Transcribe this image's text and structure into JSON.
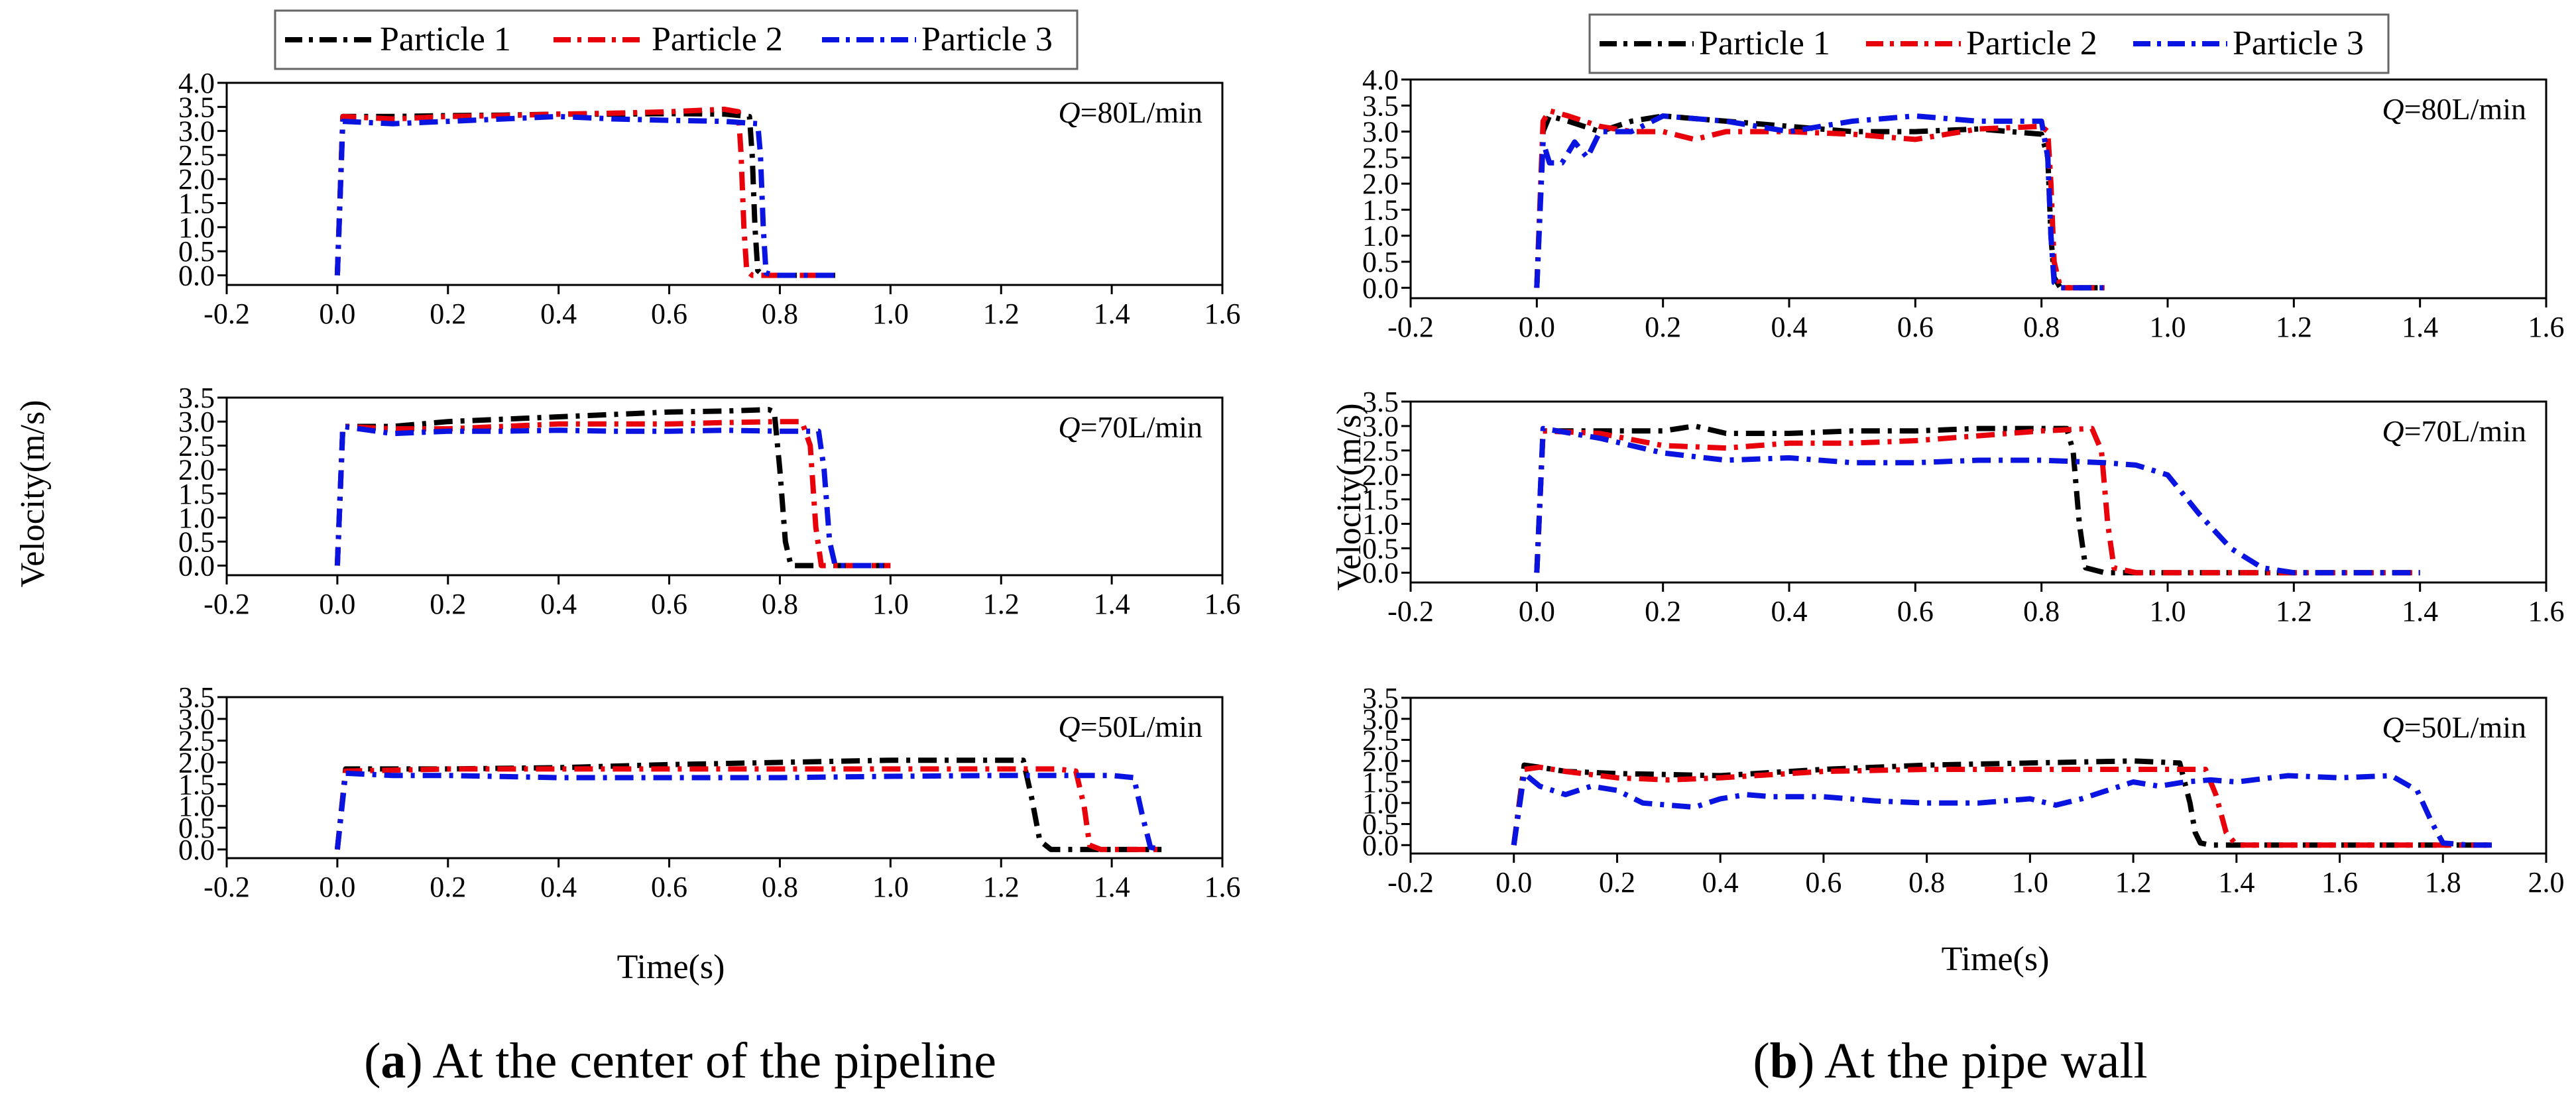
{
  "panels": [
    {
      "caption_letter": "a",
      "caption_text": " At the center of the pipeline",
      "ylabel": "Velocity(m/s)",
      "xlabel": "Time(s)"
    },
    {
      "caption_letter": "b",
      "caption_text": " At the pipe wall",
      "ylabel": "Velocity(m/s)",
      "xlabel": "Time(s)"
    }
  ],
  "legend": [
    "Particle 1",
    "Particle 2",
    "Particle 3"
  ],
  "series_colors": [
    "#000000",
    "#e8000b",
    "#0a14e0"
  ],
  "chart_data": [
    {
      "type": "line",
      "panel": "a",
      "subplot": 1,
      "annotation": "Q=80L/min",
      "xlim": [
        -0.2,
        1.6
      ],
      "ylim": [
        -0.2,
        4.0
      ],
      "xticks": [
        -0.2,
        0.0,
        0.2,
        0.4,
        0.6,
        0.8,
        1.0,
        1.2,
        1.4,
        1.6
      ],
      "yticks": [
        0.0,
        0.5,
        1.0,
        1.5,
        2.0,
        2.5,
        3.0,
        3.5,
        4.0
      ],
      "grid": false,
      "series": [
        {
          "name": "Particle 1",
          "x": [
            0.0,
            0.01,
            0.1,
            0.2,
            0.3,
            0.4,
            0.5,
            0.6,
            0.7,
            0.745,
            0.75,
            0.755,
            0.76,
            0.77,
            0.79,
            0.9
          ],
          "y": [
            0.0,
            3.3,
            3.3,
            3.32,
            3.33,
            3.35,
            3.35,
            3.36,
            3.35,
            3.3,
            2.5,
            1.0,
            0.1,
            0.0,
            0.0,
            0.0
          ]
        },
        {
          "name": "Particle 2",
          "x": [
            0.0,
            0.01,
            0.1,
            0.2,
            0.3,
            0.4,
            0.5,
            0.6,
            0.7,
            0.725,
            0.73,
            0.735,
            0.74,
            0.75,
            0.8,
            0.9
          ],
          "y": [
            0.0,
            3.3,
            3.25,
            3.3,
            3.32,
            3.35,
            3.37,
            3.4,
            3.45,
            3.4,
            2.5,
            1.0,
            0.1,
            0.0,
            0.0,
            0.0
          ]
        },
        {
          "name": "Particle 3",
          "x": [
            0.0,
            0.01,
            0.1,
            0.2,
            0.3,
            0.4,
            0.5,
            0.6,
            0.7,
            0.76,
            0.765,
            0.77,
            0.775,
            0.79,
            0.9
          ],
          "y": [
            0.0,
            3.2,
            3.15,
            3.2,
            3.25,
            3.3,
            3.25,
            3.22,
            3.2,
            3.15,
            2.5,
            1.0,
            0.05,
            0.0,
            0.0
          ]
        }
      ]
    },
    {
      "type": "line",
      "panel": "a",
      "subplot": 2,
      "annotation": "Q=70L/min",
      "xlim": [
        -0.2,
        1.6
      ],
      "ylim": [
        -0.2,
        3.5
      ],
      "xticks": [
        -0.2,
        0.0,
        0.2,
        0.4,
        0.6,
        0.8,
        1.0,
        1.2,
        1.4,
        1.6
      ],
      "yticks": [
        0.0,
        0.5,
        1.0,
        1.5,
        2.0,
        2.5,
        3.0,
        3.5
      ],
      "grid": false,
      "series": [
        {
          "name": "Particle 1",
          "x": [
            0.0,
            0.01,
            0.1,
            0.2,
            0.3,
            0.4,
            0.5,
            0.6,
            0.7,
            0.78,
            0.79,
            0.8,
            0.81,
            0.82,
            0.9,
            1.0
          ],
          "y": [
            0.0,
            2.9,
            2.9,
            3.0,
            3.05,
            3.1,
            3.15,
            3.2,
            3.22,
            3.25,
            3.2,
            2.0,
            0.5,
            0.0,
            0.0,
            0.0
          ]
        },
        {
          "name": "Particle 2",
          "x": [
            0.0,
            0.01,
            0.1,
            0.2,
            0.3,
            0.4,
            0.5,
            0.6,
            0.7,
            0.8,
            0.84,
            0.855,
            0.865,
            0.875,
            0.9,
            1.0
          ],
          "y": [
            0.0,
            2.9,
            2.85,
            2.85,
            2.9,
            2.95,
            2.95,
            2.95,
            2.98,
            3.0,
            3.0,
            2.5,
            0.8,
            0.0,
            0.0,
            0.0
          ]
        },
        {
          "name": "Particle 3",
          "x": [
            0.0,
            0.01,
            0.1,
            0.2,
            0.3,
            0.4,
            0.5,
            0.6,
            0.7,
            0.8,
            0.87,
            0.88,
            0.89,
            0.9,
            1.0
          ],
          "y": [
            0.0,
            2.9,
            2.75,
            2.8,
            2.8,
            2.82,
            2.8,
            2.8,
            2.82,
            2.8,
            2.8,
            2.0,
            0.5,
            0.0,
            0.0
          ]
        }
      ]
    },
    {
      "type": "line",
      "panel": "a",
      "subplot": 3,
      "annotation": "Q=50L/min",
      "xlim": [
        -0.2,
        1.6
      ],
      "ylim": [
        -0.2,
        3.5
      ],
      "xticks": [
        -0.2,
        0.0,
        0.2,
        0.4,
        0.6,
        0.8,
        1.0,
        1.2,
        1.4,
        1.6
      ],
      "yticks": [
        0.0,
        0.5,
        1.0,
        1.5,
        2.0,
        2.5,
        3.0,
        3.5
      ],
      "grid": false,
      "series": [
        {
          "name": "Particle 1",
          "x": [
            0.0,
            0.015,
            0.1,
            0.2,
            0.4,
            0.6,
            0.8,
            1.0,
            1.2,
            1.24,
            1.255,
            1.27,
            1.29,
            1.4,
            1.49
          ],
          "y": [
            0.0,
            1.85,
            1.85,
            1.85,
            1.88,
            1.95,
            2.0,
            2.05,
            2.05,
            2.05,
            1.2,
            0.2,
            0.0,
            0.0,
            0.0
          ]
        },
        {
          "name": "Particle 2",
          "x": [
            0.0,
            0.015,
            0.1,
            0.2,
            0.4,
            0.6,
            0.8,
            1.0,
            1.2,
            1.3,
            1.335,
            1.35,
            1.36,
            1.38,
            1.49
          ],
          "y": [
            0.0,
            1.8,
            1.82,
            1.85,
            1.85,
            1.85,
            1.85,
            1.85,
            1.85,
            1.85,
            1.8,
            1.0,
            0.1,
            0.0,
            0.0
          ]
        },
        {
          "name": "Particle 3",
          "x": [
            0.0,
            0.015,
            0.1,
            0.2,
            0.4,
            0.6,
            0.8,
            1.0,
            1.2,
            1.4,
            1.44,
            1.455,
            1.47,
            1.49
          ],
          "y": [
            0.0,
            1.75,
            1.7,
            1.7,
            1.65,
            1.65,
            1.65,
            1.68,
            1.7,
            1.7,
            1.65,
            0.8,
            0.05,
            0.0
          ]
        }
      ]
    },
    {
      "type": "line",
      "panel": "b",
      "subplot": 1,
      "annotation": "Q=80L/min",
      "xlim": [
        -0.2,
        1.6
      ],
      "ylim": [
        -0.2,
        4.0
      ],
      "xticks": [
        -0.2,
        0.0,
        0.2,
        0.4,
        0.6,
        0.8,
        1.0,
        1.2,
        1.4,
        1.6
      ],
      "yticks": [
        0.0,
        0.5,
        1.0,
        1.5,
        2.0,
        2.5,
        3.0,
        3.5,
        4.0
      ],
      "grid": false,
      "series": [
        {
          "name": "Particle 1",
          "x": [
            0.0,
            0.01,
            0.02,
            0.05,
            0.1,
            0.15,
            0.2,
            0.3,
            0.4,
            0.5,
            0.6,
            0.7,
            0.8,
            0.81,
            0.815,
            0.82,
            0.83,
            0.85,
            0.9
          ],
          "y": [
            0.0,
            3.0,
            3.3,
            3.2,
            3.0,
            3.2,
            3.3,
            3.2,
            3.1,
            3.0,
            3.0,
            3.05,
            2.95,
            2.5,
            1.0,
            0.2,
            0.0,
            0.0,
            0.0
          ]
        },
        {
          "name": "Particle 2",
          "x": [
            0.0,
            0.01,
            0.02,
            0.05,
            0.1,
            0.15,
            0.2,
            0.25,
            0.3,
            0.4,
            0.5,
            0.6,
            0.7,
            0.8,
            0.81,
            0.815,
            0.82,
            0.83,
            0.85,
            0.9
          ],
          "y": [
            0.0,
            3.2,
            3.4,
            3.3,
            3.1,
            3.0,
            3.0,
            2.85,
            3.0,
            3.0,
            2.95,
            2.85,
            3.05,
            3.1,
            3.0,
            2.0,
            0.5,
            0.0,
            0.0,
            0.0
          ]
        },
        {
          "name": "Particle 3",
          "x": [
            0.0,
            0.01,
            0.02,
            0.04,
            0.06,
            0.08,
            0.1,
            0.15,
            0.2,
            0.3,
            0.4,
            0.5,
            0.6,
            0.7,
            0.8,
            0.81,
            0.815,
            0.82,
            0.83,
            0.85,
            0.9
          ],
          "y": [
            0.0,
            2.8,
            2.4,
            2.4,
            2.8,
            2.5,
            3.0,
            3.0,
            3.3,
            3.2,
            3.0,
            3.2,
            3.3,
            3.2,
            3.2,
            2.5,
            1.0,
            0.1,
            0.0,
            0.0,
            0.0
          ]
        }
      ]
    },
    {
      "type": "line",
      "panel": "b",
      "subplot": 2,
      "annotation": "Q=70L/min",
      "xlim": [
        -0.2,
        1.6
      ],
      "ylim": [
        -0.2,
        3.5
      ],
      "xticks": [
        -0.2,
        0.0,
        0.2,
        0.4,
        0.6,
        0.8,
        1.0,
        1.2,
        1.4,
        1.6
      ],
      "yticks": [
        0.0,
        0.5,
        1.0,
        1.5,
        2.0,
        2.5,
        3.0,
        3.5
      ],
      "grid": false,
      "series": [
        {
          "name": "Particle 1",
          "x": [
            0.0,
            0.01,
            0.1,
            0.2,
            0.25,
            0.3,
            0.4,
            0.5,
            0.6,
            0.7,
            0.8,
            0.84,
            0.85,
            0.86,
            0.87,
            0.9,
            1.0,
            1.4
          ],
          "y": [
            0.0,
            2.9,
            2.9,
            2.9,
            3.0,
            2.85,
            2.85,
            2.9,
            2.9,
            2.95,
            2.95,
            2.95,
            2.5,
            1.0,
            0.1,
            0.0,
            0.0,
            0.0
          ]
        },
        {
          "name": "Particle 2",
          "x": [
            0.0,
            0.01,
            0.1,
            0.2,
            0.3,
            0.4,
            0.5,
            0.6,
            0.7,
            0.8,
            0.88,
            0.895,
            0.905,
            0.915,
            0.95,
            1.0,
            1.4
          ],
          "y": [
            0.0,
            2.9,
            2.85,
            2.6,
            2.55,
            2.65,
            2.65,
            2.7,
            2.8,
            2.9,
            2.95,
            2.5,
            1.0,
            0.1,
            0.0,
            0.0,
            0.0
          ]
        },
        {
          "name": "Particle 3",
          "x": [
            0.0,
            0.01,
            0.1,
            0.2,
            0.3,
            0.4,
            0.5,
            0.6,
            0.7,
            0.8,
            0.9,
            0.95,
            1.0,
            1.05,
            1.1,
            1.15,
            1.2,
            1.3,
            1.4
          ],
          "y": [
            0.0,
            2.95,
            2.75,
            2.45,
            2.3,
            2.35,
            2.25,
            2.25,
            2.3,
            2.3,
            2.25,
            2.2,
            2.0,
            1.2,
            0.5,
            0.1,
            0.0,
            0.0,
            0.0
          ]
        }
      ]
    },
    {
      "type": "line",
      "panel": "b",
      "subplot": 3,
      "annotation": "Q=50L/min",
      "xlim": [
        -0.2,
        2.0
      ],
      "ylim": [
        -0.2,
        3.5
      ],
      "xticks": [
        -0.2,
        0.0,
        0.2,
        0.4,
        0.6,
        0.8,
        1.0,
        1.2,
        1.4,
        1.6,
        1.8,
        2.0
      ],
      "yticks": [
        0.0,
        0.5,
        1.0,
        1.5,
        2.0,
        2.5,
        3.0,
        3.5
      ],
      "grid": false,
      "series": [
        {
          "name": "Particle 1",
          "x": [
            0.0,
            0.02,
            0.05,
            0.1,
            0.2,
            0.4,
            0.6,
            0.8,
            1.0,
            1.2,
            1.29,
            1.31,
            1.32,
            1.33,
            1.35,
            1.5,
            1.9
          ],
          "y": [
            0.0,
            1.9,
            1.85,
            1.75,
            1.7,
            1.65,
            1.8,
            1.9,
            1.95,
            2.0,
            1.95,
            1.0,
            0.3,
            0.05,
            0.0,
            0.0,
            0.0
          ]
        },
        {
          "name": "Particle 2",
          "x": [
            0.0,
            0.02,
            0.05,
            0.1,
            0.2,
            0.3,
            0.4,
            0.6,
            0.8,
            1.0,
            1.2,
            1.34,
            1.36,
            1.38,
            1.4,
            1.5,
            1.9
          ],
          "y": [
            0.0,
            1.8,
            1.85,
            1.75,
            1.6,
            1.55,
            1.6,
            1.75,
            1.8,
            1.8,
            1.8,
            1.8,
            1.2,
            0.3,
            0.0,
            0.0,
            0.0
          ]
        },
        {
          "name": "Particle 3",
          "x": [
            0.0,
            0.02,
            0.05,
            0.1,
            0.15,
            0.2,
            0.25,
            0.3,
            0.35,
            0.4,
            0.45,
            0.5,
            0.6,
            0.7,
            0.8,
            0.9,
            1.0,
            1.05,
            1.1,
            1.2,
            1.25,
            1.3,
            1.35,
            1.4,
            1.5,
            1.6,
            1.7,
            1.75,
            1.78,
            1.8,
            1.85,
            1.9
          ],
          "y": [
            0.0,
            1.7,
            1.4,
            1.2,
            1.4,
            1.3,
            1.0,
            0.95,
            0.9,
            1.1,
            1.2,
            1.15,
            1.15,
            1.05,
            1.0,
            1.0,
            1.1,
            0.95,
            1.1,
            1.5,
            1.4,
            1.5,
            1.55,
            1.5,
            1.65,
            1.6,
            1.65,
            1.3,
            0.5,
            0.05,
            0.0,
            0.0
          ]
        }
      ]
    }
  ]
}
